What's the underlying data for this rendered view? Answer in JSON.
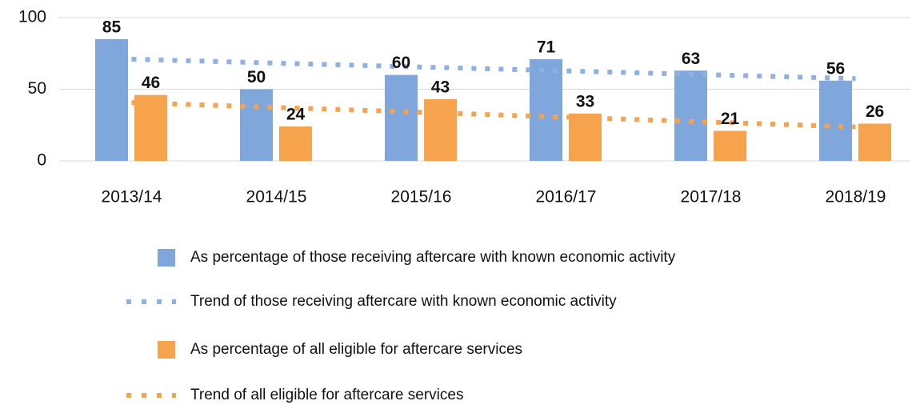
{
  "chart_data": {
    "type": "bar",
    "categories": [
      "2013/14",
      "2014/15",
      "2015/16",
      "2016/17",
      "2017/18",
      "2018/19"
    ],
    "series": [
      {
        "name": "As percentage of those receiving aftercare with known economic activity",
        "type": "bar",
        "color": "#7fa7dc",
        "values": [
          85,
          50,
          60,
          71,
          63,
          56
        ]
      },
      {
        "name": "Trend of those receiving aftercare with known economic activity",
        "type": "line",
        "color": "#8fb1e2",
        "values": [
          71.0,
          68.2,
          65.5,
          62.8,
          60.1,
          57.4
        ]
      },
      {
        "name": "As percentage of all eligible for aftercare services",
        "type": "bar",
        "color": "#f7a24d",
        "values": [
          46,
          24,
          43,
          33,
          21,
          26
        ]
      },
      {
        "name": "Trend of all eligible for aftercare services",
        "type": "line",
        "color": "#f7a24d",
        "values": [
          40.7,
          37.3,
          33.9,
          30.5,
          27.1,
          23.7
        ]
      }
    ],
    "ylim": [
      0,
      100
    ],
    "yticks": [
      0,
      50,
      100
    ],
    "grid": true
  }
}
